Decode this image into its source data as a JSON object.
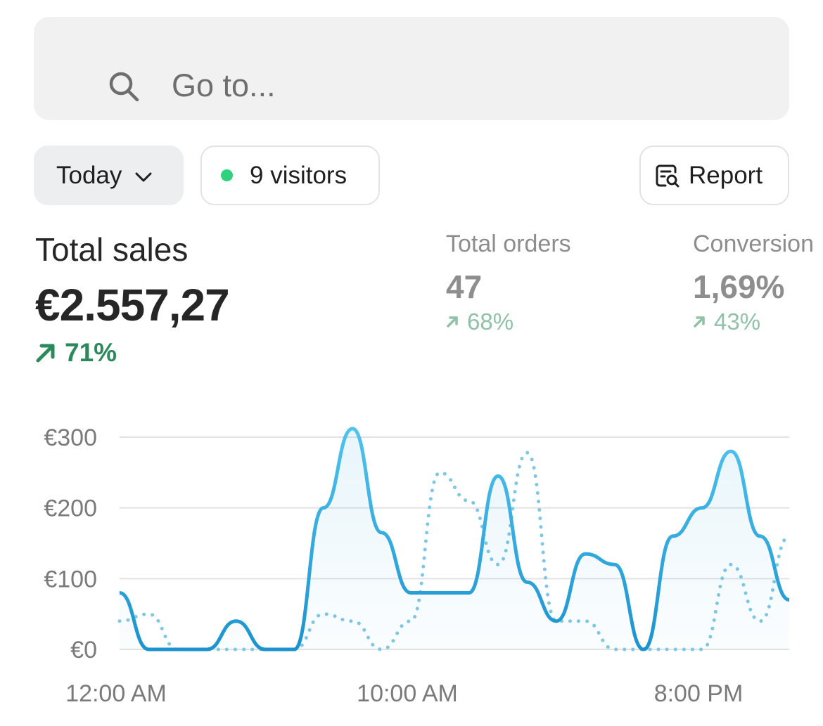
{
  "search": {
    "placeholder": "Go to...",
    "icon": "search-icon"
  },
  "filters": {
    "date_label": "Today",
    "visitors_label": "9 visitors",
    "visitors_dot_color": "#2ed27c",
    "report_label": "Report"
  },
  "metrics": {
    "total_sales": {
      "label": "Total sales",
      "value": "€2.557,27",
      "change": "71%",
      "change_color": "#2a8a5c"
    },
    "total_orders": {
      "label": "Total orders",
      "value": "47",
      "change": "68%"
    },
    "conversion": {
      "label": "Conversion",
      "value": "1,69%",
      "change": "43%"
    }
  },
  "chart_data": {
    "type": "line",
    "y_ticks": [
      "€300",
      "€200",
      "€100",
      "€0"
    ],
    "x_ticks": [
      "12:00 AM",
      "10:00 AM",
      "8:00 PM"
    ],
    "ylim": [
      0,
      300
    ],
    "series": [
      {
        "style": "solid",
        "color": "#1e9fd9",
        "area_fill": true,
        "points": [
          [
            0,
            80
          ],
          [
            1,
            0
          ],
          [
            2,
            0
          ],
          [
            3,
            0
          ],
          [
            4,
            40
          ],
          [
            5,
            0
          ],
          [
            6,
            0
          ],
          [
            7,
            200
          ],
          [
            8,
            312
          ],
          [
            9,
            165
          ],
          [
            10,
            80
          ],
          [
            11,
            80
          ],
          [
            12,
            80
          ],
          [
            13,
            245
          ],
          [
            14,
            95
          ],
          [
            15,
            40
          ],
          [
            16,
            135
          ],
          [
            17,
            120
          ],
          [
            18,
            0
          ],
          [
            19,
            160
          ],
          [
            20,
            200
          ],
          [
            21,
            280
          ],
          [
            22,
            160
          ],
          [
            23,
            70
          ]
        ]
      },
      {
        "style": "dotted",
        "color": "#7fc7e6",
        "area_fill": false,
        "points": [
          [
            0,
            40
          ],
          [
            1,
            50
          ],
          [
            2,
            0
          ],
          [
            3,
            0
          ],
          [
            4,
            0
          ],
          [
            5,
            0
          ],
          [
            6,
            0
          ],
          [
            7,
            50
          ],
          [
            8,
            40
          ],
          [
            9,
            0
          ],
          [
            10,
            40
          ],
          [
            11,
            250
          ],
          [
            12,
            210
          ],
          [
            13,
            120
          ],
          [
            14,
            278
          ],
          [
            15,
            40
          ],
          [
            16,
            40
          ],
          [
            17,
            0
          ],
          [
            18,
            0
          ],
          [
            19,
            0
          ],
          [
            20,
            0
          ],
          [
            21,
            120
          ],
          [
            22,
            40
          ],
          [
            23,
            160
          ]
        ]
      }
    ]
  }
}
